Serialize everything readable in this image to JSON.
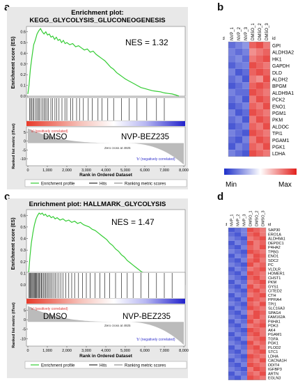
{
  "panel_letters": {
    "a": "a",
    "b": "b",
    "c": "c",
    "d": "d"
  },
  "gsea_a": {
    "title_line1": "Enrichment plot:",
    "title_line2": "KEGG_GLYCOLYSIS_GLUCONEOGENESIS",
    "nes": "NES = 1.32",
    "ylabel_top": "Enrichment score (ES)",
    "ylabel_bottom": "Ranked list metric (tTest)",
    "xlabel": "Rank in Ordered Dataset",
    "yticks_top": [
      "0.6",
      "0.5",
      "0.4",
      "0.3",
      "0.2",
      "0.1",
      "0.0"
    ],
    "yticks_bottom": [
      "5",
      "0",
      "-5",
      "-10"
    ],
    "xticks": [
      "0",
      "1,000",
      "2,000",
      "3,000",
      "4,000",
      "5,000",
      "6,000",
      "7,000",
      "8,000"
    ],
    "pos_label": "'a' (positively correlated)",
    "neg_label": "'b' (negatively correlated)",
    "zero_label": "Zero cross at 4925",
    "dmso": "DMSO",
    "drug": "NVP-BEZ235",
    "legend": [
      "Enrichment profile",
      "Hits",
      "Ranking metric scores"
    ],
    "es_points": [
      [
        0,
        0.02
      ],
      [
        60,
        0.1
      ],
      [
        130,
        0.25
      ],
      [
        220,
        0.38
      ],
      [
        300,
        0.48
      ],
      [
        380,
        0.52
      ],
      [
        470,
        0.58
      ],
      [
        560,
        0.61
      ],
      [
        650,
        0.63
      ],
      [
        740,
        0.6
      ],
      [
        830,
        0.58
      ],
      [
        920,
        0.6
      ],
      [
        1010,
        0.57
      ],
      [
        1100,
        0.58
      ],
      [
        1190,
        0.55
      ],
      [
        1280,
        0.56
      ],
      [
        1370,
        0.53
      ],
      [
        1460,
        0.55
      ],
      [
        1550,
        0.52
      ],
      [
        1640,
        0.53
      ],
      [
        1730,
        0.5
      ],
      [
        1820,
        0.52
      ],
      [
        1910,
        0.49
      ],
      [
        2000,
        0.5
      ],
      [
        2150,
        0.48
      ],
      [
        2300,
        0.49
      ],
      [
        2450,
        0.46
      ],
      [
        2600,
        0.47
      ],
      [
        2750,
        0.45
      ],
      [
        2900,
        0.43
      ],
      [
        3050,
        0.44
      ],
      [
        3200,
        0.41
      ],
      [
        3350,
        0.42
      ],
      [
        3500,
        0.39
      ],
      [
        3650,
        0.37
      ],
      [
        3800,
        0.35
      ],
      [
        3950,
        0.33
      ],
      [
        4100,
        0.3
      ],
      [
        4250,
        0.27
      ],
      [
        4400,
        0.25
      ],
      [
        4550,
        0.22
      ],
      [
        4700,
        0.2
      ],
      [
        4850,
        0.18
      ],
      [
        5000,
        0.16
      ],
      [
        5200,
        0.14
      ],
      [
        5400,
        0.12
      ],
      [
        5600,
        0.1
      ],
      [
        5800,
        0.08
      ],
      [
        6000,
        0.07
      ],
      [
        6200,
        0.06
      ],
      [
        6400,
        0.05
      ],
      [
        6600,
        0.045
      ],
      [
        6800,
        0.04
      ],
      [
        7000,
        0.03
      ],
      [
        7200,
        0.025
      ],
      [
        7400,
        0.02
      ],
      [
        7600,
        0.01
      ],
      [
        7750,
        0.0
      ]
    ],
    "hits": [
      80,
      140,
      200,
      260,
      320,
      410,
      470,
      540,
      600,
      680,
      760,
      840,
      900,
      980,
      1060,
      1180,
      1260,
      1390,
      1480,
      1600,
      1750,
      1900,
      2000,
      2200,
      2300,
      2500,
      2650,
      2850,
      3100,
      3300,
      3600,
      3800,
      4100,
      4400,
      4800,
      5200,
      5600,
      6100,
      6600,
      7000
    ]
  },
  "gsea_c": {
    "title": "Enrichment plot: HALLMARK_GLYCOLYSIS",
    "nes": "NES = 1.47",
    "ylabel_top": "Enrichment score (ES)",
    "ylabel_bottom": "Ranked list metric (tTest)",
    "xlabel": "Rank in Ordered Dataset",
    "yticks_top": [
      "0.6",
      "0.5",
      "0.4",
      "0.3",
      "0.2",
      "0.1",
      "0.0"
    ],
    "yticks_bottom": [
      "5",
      "0",
      "-5",
      "-10"
    ],
    "xticks": [
      "0",
      "1,000",
      "2,000",
      "3,000",
      "4,000",
      "5,000",
      "6,000",
      "7,000",
      "8,000"
    ],
    "pos_label": "'a' (positively correlated)",
    "neg_label": "'b' (negatively correlated)",
    "zero_label": "Zero cross at 4925",
    "dmso": "DMSO",
    "drug": "NVP-BEZ235",
    "legend": [
      "Enrichment profile",
      "Hits",
      "Ranking metric scores"
    ],
    "es_points": [
      [
        0,
        0.02
      ],
      [
        50,
        0.12
      ],
      [
        110,
        0.25
      ],
      [
        180,
        0.36
      ],
      [
        260,
        0.45
      ],
      [
        340,
        0.52
      ],
      [
        420,
        0.57
      ],
      [
        500,
        0.6
      ],
      [
        580,
        0.62
      ],
      [
        660,
        0.61
      ],
      [
        740,
        0.62
      ],
      [
        820,
        0.6
      ],
      [
        900,
        0.61
      ],
      [
        1000,
        0.59
      ],
      [
        1100,
        0.6
      ],
      [
        1200,
        0.58
      ],
      [
        1300,
        0.59
      ],
      [
        1400,
        0.57
      ],
      [
        1500,
        0.58
      ],
      [
        1650,
        0.56
      ],
      [
        1800,
        0.57
      ],
      [
        1950,
        0.55
      ],
      [
        2100,
        0.56
      ],
      [
        2250,
        0.54
      ],
      [
        2400,
        0.55
      ],
      [
        2550,
        0.53
      ],
      [
        2700,
        0.54
      ],
      [
        2850,
        0.52
      ],
      [
        3000,
        0.51
      ],
      [
        3150,
        0.5
      ],
      [
        3300,
        0.48
      ],
      [
        3450,
        0.47
      ],
      [
        3600,
        0.45
      ],
      [
        3750,
        0.43
      ],
      [
        3900,
        0.41
      ],
      [
        4050,
        0.39
      ],
      [
        4200,
        0.36
      ],
      [
        4350,
        0.34
      ],
      [
        4500,
        0.31
      ],
      [
        4650,
        0.29
      ],
      [
        4800,
        0.26
      ],
      [
        4950,
        0.24
      ],
      [
        5100,
        0.21
      ],
      [
        5250,
        0.19
      ],
      [
        5400,
        0.17
      ],
      [
        5550,
        0.15
      ],
      [
        5700,
        0.13
      ],
      [
        5850,
        0.11
      ],
      [
        6000,
        0.1
      ],
      [
        6200,
        0.08
      ],
      [
        6400,
        0.06
      ],
      [
        6600,
        0.05
      ],
      [
        6800,
        0.04
      ],
      [
        7000,
        0.03
      ],
      [
        7200,
        0.02
      ],
      [
        7400,
        0.01
      ],
      [
        7600,
        0.005
      ],
      [
        7750,
        0.0
      ]
    ],
    "hits": [
      40,
      90,
      130,
      170,
      210,
      250,
      290,
      330,
      370,
      410,
      450,
      500,
      540,
      590,
      640,
      690,
      740,
      800,
      860,
      920,
      980,
      1040,
      1110,
      1180,
      1250,
      1330,
      1410,
      1500,
      1600,
      1700,
      1800,
      1950,
      2100,
      2250,
      2400,
      2600,
      2800,
      3000,
      3200,
      3450,
      3700,
      3950,
      4200,
      4500,
      4800,
      5100,
      5400,
      5800,
      6200,
      6600,
      7000,
      7400
    ]
  },
  "heat_b": {
    "id_label": "id",
    "columns": [
      "NVP_1",
      "NVP_2",
      "NVP_3",
      "DMSO_1",
      "DMSO_2",
      "DMSO_3"
    ],
    "genes": [
      "GPI",
      "ALDH3A2",
      "HK1",
      "GAPDH",
      "DLD",
      "ALDH2",
      "BPGM",
      "ALDH9A1",
      "PCK2",
      "ENO1",
      "PGM1",
      "PKM",
      "ALDOC",
      "TPI1",
      "PGAM1",
      "PGK1",
      "LDHA"
    ],
    "values": [
      [
        0.15,
        0.2,
        0.25,
        0.85,
        0.9,
        0.8
      ],
      [
        0.2,
        0.15,
        0.2,
        0.75,
        0.8,
        0.85
      ],
      [
        0.18,
        0.22,
        0.15,
        0.8,
        0.85,
        0.9
      ],
      [
        0.12,
        0.18,
        0.2,
        0.9,
        0.85,
        0.8
      ],
      [
        0.2,
        0.1,
        0.15,
        0.85,
        0.9,
        0.85
      ],
      [
        0.15,
        0.2,
        0.1,
        0.8,
        0.75,
        0.9
      ],
      [
        0.1,
        0.15,
        0.2,
        0.85,
        0.9,
        0.85
      ],
      [
        0.2,
        0.15,
        0.15,
        0.9,
        0.85,
        0.8
      ],
      [
        0.15,
        0.2,
        0.1,
        0.8,
        0.9,
        0.85
      ],
      [
        0.1,
        0.15,
        0.2,
        0.85,
        0.8,
        0.9
      ],
      [
        0.2,
        0.1,
        0.15,
        0.9,
        0.85,
        0.8
      ],
      [
        0.15,
        0.2,
        0.1,
        0.8,
        0.9,
        0.85
      ],
      [
        0.1,
        0.15,
        0.2,
        0.85,
        0.8,
        0.9
      ],
      [
        0.2,
        0.15,
        0.1,
        0.9,
        0.85,
        0.8
      ],
      [
        0.15,
        0.1,
        0.2,
        0.8,
        0.9,
        0.85
      ],
      [
        0.1,
        0.2,
        0.15,
        0.85,
        0.8,
        0.9
      ],
      [
        0.2,
        0.15,
        0.1,
        0.9,
        0.85,
        0.8
      ]
    ],
    "scale_min": "Min",
    "scale_max": "Max"
  },
  "heat_d": {
    "id_label": "id",
    "columns": [
      "NVP_1",
      "NVP_2",
      "NVP_3",
      "DMSO_1",
      "DMSO_2",
      "DMSO_3"
    ],
    "genes": [
      "SAP30",
      "ERO1A",
      "ALDH9A1",
      "DEPDC1",
      "P4HA2",
      "TPBG",
      "ENO1",
      "SDC2",
      "PC",
      "VLDLR",
      "HOMER1",
      "CHST1",
      "PKM",
      "GYS1",
      "CITED2",
      "CTH",
      "PPFIA4",
      "TPI1",
      "SLC16A3",
      "SPAG4",
      "FAM162A",
      "P4HA1",
      "PDK3",
      "AK4",
      "PGAM1",
      "TGFA",
      "PGK1",
      "PLOD2",
      "STC1",
      "LDHA",
      "CACNA1H",
      "DDIT4",
      "IGFBP3",
      "ARTN",
      "EGLN3"
    ],
    "values": [
      [
        0.1,
        0.15,
        0.2,
        0.9,
        0.85,
        0.8
      ],
      [
        0.15,
        0.1,
        0.2,
        0.85,
        0.9,
        0.8
      ],
      [
        0.2,
        0.15,
        0.1,
        0.8,
        0.85,
        0.9
      ],
      [
        0.1,
        0.2,
        0.15,
        0.9,
        0.8,
        0.85
      ],
      [
        0.15,
        0.1,
        0.2,
        0.85,
        0.8,
        0.9
      ],
      [
        0.2,
        0.15,
        0.1,
        0.9,
        0.85,
        0.8
      ],
      [
        0.1,
        0.2,
        0.15,
        0.8,
        0.9,
        0.85
      ],
      [
        0.15,
        0.1,
        0.2,
        0.85,
        0.9,
        0.8
      ],
      [
        0.2,
        0.15,
        0.1,
        0.9,
        0.8,
        0.85
      ],
      [
        0.1,
        0.2,
        0.15,
        0.8,
        0.85,
        0.9
      ],
      [
        0.15,
        0.1,
        0.2,
        0.9,
        0.85,
        0.8
      ],
      [
        0.2,
        0.15,
        0.1,
        0.85,
        0.9,
        0.8
      ],
      [
        0.1,
        0.2,
        0.15,
        0.8,
        0.85,
        0.9
      ],
      [
        0.15,
        0.1,
        0.2,
        0.9,
        0.8,
        0.85
      ],
      [
        0.2,
        0.15,
        0.1,
        0.85,
        0.9,
        0.8
      ],
      [
        0.1,
        0.2,
        0.15,
        0.8,
        0.85,
        0.9
      ],
      [
        0.15,
        0.1,
        0.2,
        0.9,
        0.85,
        0.8
      ],
      [
        0.2,
        0.15,
        0.1,
        0.85,
        0.8,
        0.9
      ],
      [
        0.1,
        0.2,
        0.15,
        0.9,
        0.85,
        0.8
      ],
      [
        0.15,
        0.1,
        0.2,
        0.8,
        0.9,
        0.85
      ],
      [
        0.2,
        0.15,
        0.1,
        0.85,
        0.9,
        0.8
      ],
      [
        0.1,
        0.2,
        0.15,
        0.9,
        0.8,
        0.85
      ],
      [
        0.15,
        0.1,
        0.2,
        0.8,
        0.85,
        0.9
      ],
      [
        0.2,
        0.15,
        0.1,
        0.9,
        0.85,
        0.8
      ],
      [
        0.1,
        0.2,
        0.15,
        0.85,
        0.9,
        0.8
      ],
      [
        0.15,
        0.1,
        0.2,
        0.8,
        0.85,
        0.9
      ],
      [
        0.2,
        0.15,
        0.1,
        0.9,
        0.8,
        0.85
      ],
      [
        0.1,
        0.2,
        0.15,
        0.85,
        0.9,
        0.8
      ],
      [
        0.15,
        0.1,
        0.2,
        0.8,
        0.85,
        0.9
      ],
      [
        0.2,
        0.15,
        0.1,
        0.9,
        0.85,
        0.8
      ],
      [
        0.1,
        0.2,
        0.15,
        0.85,
        0.8,
        0.9
      ],
      [
        0.15,
        0.1,
        0.2,
        0.9,
        0.85,
        0.8
      ],
      [
        0.2,
        0.15,
        0.1,
        0.8,
        0.9,
        0.85
      ],
      [
        0.1,
        0.2,
        0.15,
        0.85,
        0.8,
        0.9
      ],
      [
        0.15,
        0.1,
        0.2,
        0.9,
        0.85,
        0.8
      ]
    ]
  },
  "colors": {
    "es_line": "#33cc33",
    "hits": "#000000",
    "metric_fill": "#bbbbbb",
    "heat_low": "#1d2fc9",
    "heat_mid": "#ffffff",
    "heat_high": "#e2201c",
    "plot_bg": "#ffffff",
    "frame_bg": "#e8e8e8"
  }
}
